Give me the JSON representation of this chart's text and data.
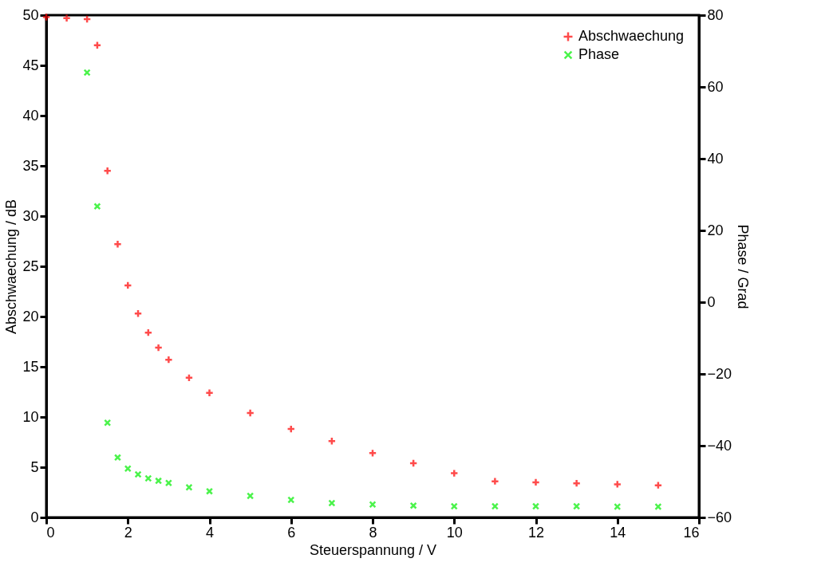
{
  "chart_data": {
    "type": "scatter",
    "xlabel": "Steuerspannung / V",
    "ylabel": "Abschwaechung / dB",
    "y2label": "Phase / Grad",
    "xlim": [
      0,
      16
    ],
    "xticks": [
      0,
      2,
      4,
      6,
      8,
      10,
      12,
      14,
      16
    ],
    "ylim": [
      0,
      50
    ],
    "yticks": [
      0,
      5,
      10,
      15,
      20,
      25,
      30,
      35,
      40,
      45,
      50
    ],
    "y2lim": [
      -60,
      80
    ],
    "y2ticks": [
      -60,
      -40,
      -20,
      0,
      20,
      40,
      60,
      80
    ],
    "grid": false,
    "legend": "top right",
    "series": [
      {
        "name": "Abschwaechung",
        "color": "#ff0000",
        "marker": "cross",
        "x": [
          0,
          0.5,
          1,
          1.25,
          1.5,
          1.75,
          2,
          2.25,
          2.5,
          2.75,
          3,
          3.5,
          4,
          5,
          6,
          7,
          8,
          9,
          10,
          11,
          12,
          13,
          14,
          15
        ],
        "values": [
          49.8,
          49.7,
          49.6,
          47,
          34.5,
          27.2,
          23.1,
          20.3,
          18.4,
          16.9,
          15.7,
          13.9,
          12.4,
          10.4,
          8.8,
          7.6,
          6.4,
          5.4,
          4.4,
          3.6,
          3.5,
          3.4,
          3.3,
          3.2
        ]
      },
      {
        "name": "Phase",
        "color": "#00ee00",
        "marker": "x",
        "axis": "y2",
        "x": [
          1,
          1.25,
          1.5,
          1.75,
          2,
          2.25,
          2.5,
          2.75,
          3,
          3.5,
          4,
          5,
          6,
          7,
          8,
          9,
          10,
          11,
          12,
          13,
          14,
          15
        ],
        "values": [
          64,
          26.7,
          -33.6,
          -43.3,
          -46.4,
          -48,
          -49.1,
          -49.8,
          -50.4,
          -51.6,
          -52.7,
          -54,
          -55.1,
          -56,
          -56.4,
          -56.7,
          -56.9,
          -56.9,
          -56.9,
          -56.9,
          -57,
          -57
        ]
      }
    ]
  }
}
